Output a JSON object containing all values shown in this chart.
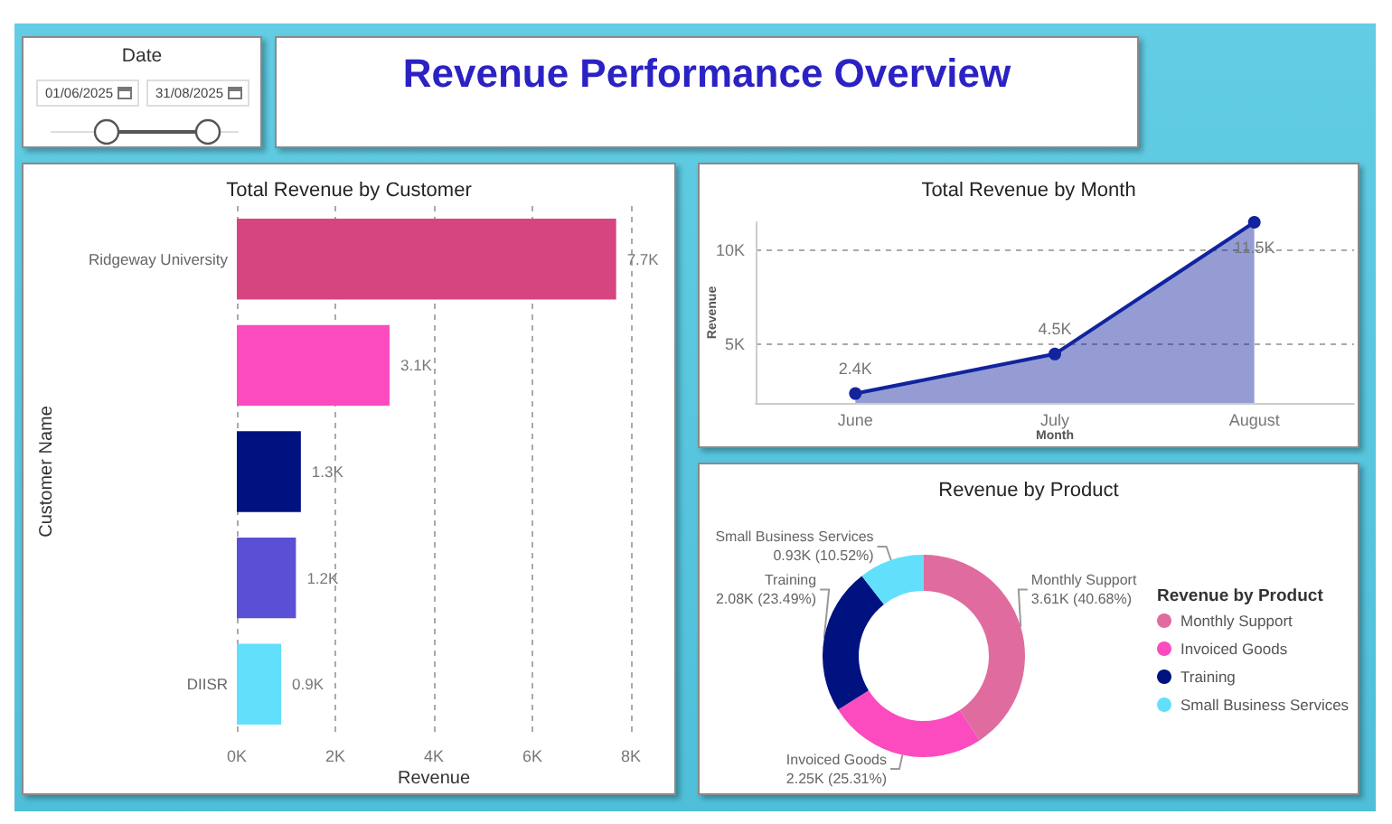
{
  "chart_data": [
    {
      "type": "other",
      "title": "Date",
      "annotations": [
        "01/06/2025",
        "31/08/2025"
      ]
    },
    {
      "type": "other",
      "title": "Revenue Performance Overview"
    },
    {
      "type": "bar",
      "title": "Total Revenue by Customer",
      "orientation": "horizontal",
      "categories": [
        "Ridgeway University",
        null,
        null,
        null,
        "DIISR"
      ],
      "values": [
        7700,
        3100,
        1300,
        1200,
        900
      ],
      "colors": [
        "#d64580",
        "#fb4bbf",
        "#00127f",
        "#5b4fd6",
        "#62e0fb"
      ],
      "value_labels": [
        "7.7K",
        "3.1K",
        "1.3K",
        "1.2K",
        "0.9K"
      ],
      "xlabel": "Revenue",
      "ylabel": "Customer Name",
      "xlim": [
        0,
        8000
      ],
      "xticks": [
        {
          "value": 0,
          "label": "0K"
        },
        {
          "value": 2000,
          "label": "2K"
        },
        {
          "value": 4000,
          "label": "4K"
        },
        {
          "value": 6000,
          "label": "6K"
        },
        {
          "value": 8000,
          "label": "8K"
        }
      ],
      "grid": "x"
    },
    {
      "type": "area",
      "title": "Total Revenue by Month",
      "categories": [
        "June",
        "July",
        "August"
      ],
      "values": [
        2400,
        4500,
        11500
      ],
      "color": "#12239e",
      "value_labels": [
        "2.4K",
        "4.5K",
        "11.5K"
      ],
      "xlabel": "Month",
      "ylabel": "Revenue",
      "ylim": [
        1900,
        11500
      ],
      "yticks": [
        {
          "value": 5000,
          "label": "5K"
        },
        {
          "value": 10000,
          "label": "10K"
        }
      ],
      "grid": "y",
      "marker": "circle",
      "line_style": "solid"
    },
    {
      "type": "donut",
      "title": "Revenue by Product",
      "categories": [
        "Monthly Support",
        "Invoiced Goods",
        "Training",
        "Small Business Services"
      ],
      "values": [
        3610,
        2250,
        2080,
        930
      ],
      "colors": [
        "#e06c9f",
        "#fb4bbf",
        "#00127f",
        "#62e0fb"
      ],
      "value_labels": [
        "3.61K (40.68%)",
        "2.25K (25.31%)",
        "2.08K (23.49%)",
        "0.93K (10.52%)"
      ],
      "legend_title": "Revenue by Product",
      "legend": "right"
    }
  ]
}
